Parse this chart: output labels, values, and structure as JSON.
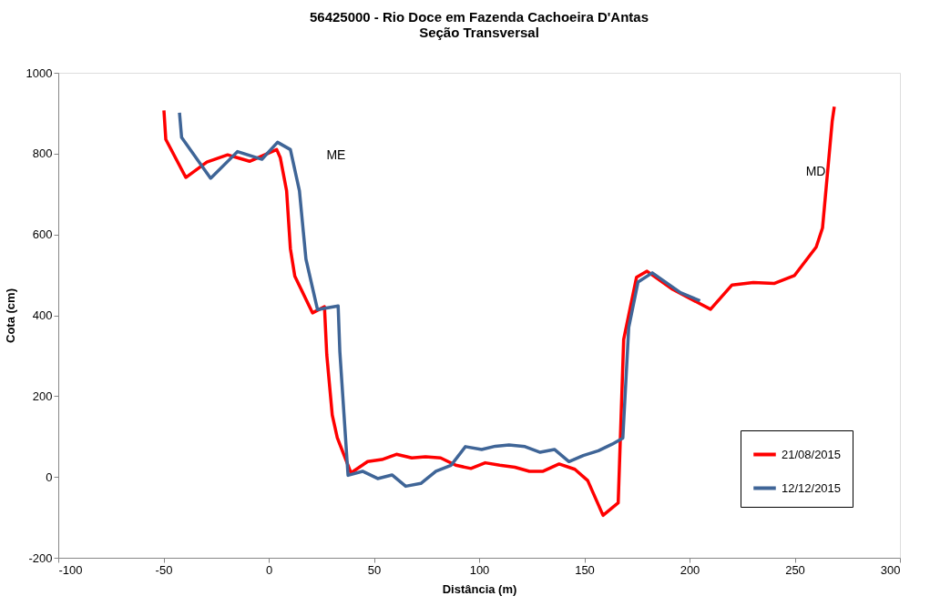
{
  "chart_data": {
    "type": "line",
    "title": [
      "56425000 - Rio Doce em Fazenda Cachoeira D'Antas",
      "Seção Transversal"
    ],
    "xlabel": "Distância (m)",
    "ylabel": "Cota (cm)",
    "xlim": [
      -100,
      300
    ],
    "xticks": [
      -100,
      -50,
      0,
      50,
      100,
      150,
      200,
      250,
      300
    ],
    "ylim": [
      -200,
      1000
    ],
    "yticks": [
      -200,
      0,
      200,
      400,
      600,
      800,
      1000
    ],
    "grid": false,
    "legend": "bottom right",
    "marker": "none",
    "line_style": "solid",
    "annotations": [
      "ME",
      "MD"
    ],
    "series": [
      {
        "name": "21/08/2015",
        "color": "#ff0000",
        "x": [
          -49.8,
          -48.9,
          -39.4,
          -29.4,
          -19.5,
          -9.1,
          3.8,
          5.5,
          8.5,
          10.3,
          12.4,
          20.8,
          26.5,
          27.6,
          30.2,
          32.6,
          39.1,
          47,
          53.8,
          60.7,
          68,
          74.5,
          81.7,
          88.9,
          96.1,
          102.9,
          109.8,
          117,
          123.9,
          130.4,
          138,
          145.5,
          151.6,
          158.9,
          166.1,
          168.7,
          174.8,
          179.8,
          192,
          210,
          220.2,
          230.3,
          240.4,
          249.8,
          260.2,
          263.2,
          267.8,
          268.8
        ],
        "values": [
          907,
          835,
          741,
          779,
          797,
          781,
          810,
          790,
          708,
          565,
          497,
          406,
          421,
          302,
          153,
          97,
          10,
          38,
          43,
          56,
          47,
          50,
          47,
          29,
          21,
          35,
          29,
          24,
          14,
          14,
          32,
          19,
          -9,
          -95,
          -64,
          340,
          494,
          509,
          464,
          415,
          475,
          481,
          479,
          498,
          569,
          616,
          880,
          916
        ]
      },
      {
        "name": "12/12/2015",
        "color": "#3f6597",
        "x": [
          -42.4,
          -41.4,
          -27.6,
          -14.8,
          -3.2,
          4.2,
          10.3,
          14.6,
          17.7,
          23.2,
          33,
          33.8,
          37.7,
          44.6,
          51.8,
          58.6,
          65.1,
          72.3,
          79.5,
          86.7,
          93.5,
          101.2,
          107.7,
          114.2,
          121.8,
          129,
          135.8,
          142.7,
          149.5,
          156.7,
          163.2,
          168.3,
          171.1,
          175.5,
          182.3,
          195.7,
          205
        ],
        "values": [
          901,
          840,
          739,
          805,
          786,
          828,
          810,
          708,
          539,
          414,
          423,
          311,
          4,
          14,
          -4,
          5,
          -23,
          -16,
          14,
          29,
          75,
          68,
          76,
          79,
          75,
          61,
          68,
          38,
          53,
          65,
          81,
          96,
          370,
          482,
          505,
          456,
          436
        ]
      }
    ]
  }
}
